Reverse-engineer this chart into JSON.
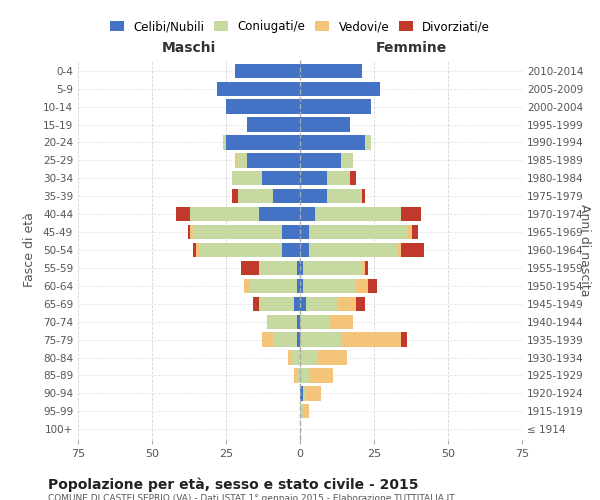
{
  "age_groups": [
    "100+",
    "95-99",
    "90-94",
    "85-89",
    "80-84",
    "75-79",
    "70-74",
    "65-69",
    "60-64",
    "55-59",
    "50-54",
    "45-49",
    "40-44",
    "35-39",
    "30-34",
    "25-29",
    "20-24",
    "15-19",
    "10-14",
    "5-9",
    "0-4"
  ],
  "birth_years": [
    "≤ 1914",
    "1915-1919",
    "1920-1924",
    "1925-1929",
    "1930-1934",
    "1935-1939",
    "1940-1944",
    "1945-1949",
    "1950-1954",
    "1955-1959",
    "1960-1964",
    "1965-1969",
    "1970-1974",
    "1975-1979",
    "1980-1984",
    "1985-1989",
    "1990-1994",
    "1995-1999",
    "2000-2004",
    "2005-2009",
    "2010-2014"
  ],
  "maschi": {
    "celibi": [
      0,
      0,
      0,
      0,
      0,
      1,
      1,
      2,
      1,
      1,
      6,
      6,
      14,
      9,
      13,
      18,
      25,
      18,
      25,
      28,
      22
    ],
    "coniugati": [
      0,
      0,
      0,
      1,
      3,
      8,
      10,
      12,
      16,
      13,
      28,
      30,
      23,
      12,
      10,
      3,
      1,
      0,
      0,
      0,
      0
    ],
    "vedovi": [
      0,
      0,
      0,
      1,
      1,
      4,
      0,
      0,
      2,
      0,
      1,
      1,
      0,
      0,
      0,
      1,
      0,
      0,
      0,
      0,
      0
    ],
    "divorziati": [
      0,
      0,
      0,
      0,
      0,
      0,
      0,
      2,
      0,
      6,
      1,
      1,
      5,
      2,
      0,
      0,
      0,
      0,
      0,
      0,
      0
    ]
  },
  "femmine": {
    "nubili": [
      0,
      0,
      1,
      0,
      0,
      0,
      0,
      2,
      1,
      1,
      3,
      3,
      5,
      9,
      9,
      14,
      22,
      17,
      24,
      27,
      21
    ],
    "coniugate": [
      0,
      1,
      1,
      3,
      6,
      14,
      10,
      11,
      18,
      20,
      30,
      33,
      29,
      12,
      8,
      4,
      2,
      0,
      0,
      0,
      0
    ],
    "vedove": [
      0,
      2,
      5,
      8,
      10,
      20,
      8,
      6,
      4,
      1,
      1,
      2,
      0,
      0,
      0,
      0,
      0,
      0,
      0,
      0,
      0
    ],
    "divorziate": [
      0,
      0,
      0,
      0,
      0,
      2,
      0,
      3,
      3,
      1,
      8,
      2,
      7,
      1,
      2,
      0,
      0,
      0,
      0,
      0,
      0
    ]
  },
  "colors": {
    "celibi": "#4472C4",
    "coniugati": "#C5D9A0",
    "vedovi": "#F5C47B",
    "divorziati": "#C0392B"
  },
  "xlim": 75,
  "title": "Popolazione per età, sesso e stato civile - 2015",
  "subtitle": "COMUNE DI CASTELSEPRIO (VA) - Dati ISTAT 1° gennaio 2015 - Elaborazione TUTTITALIA.IT",
  "ylabel_left": "Fasce di età",
  "ylabel_right": "Anni di nascita",
  "xlabel_left": "Maschi",
  "xlabel_right": "Femmine",
  "bg_color": "#ffffff",
  "grid_color": "#cccccc",
  "bar_height": 0.8,
  "legend_labels": [
    "Celibi/Nubili",
    "Coniugati/e",
    "Vedovi/e",
    "Divorziati/e"
  ]
}
